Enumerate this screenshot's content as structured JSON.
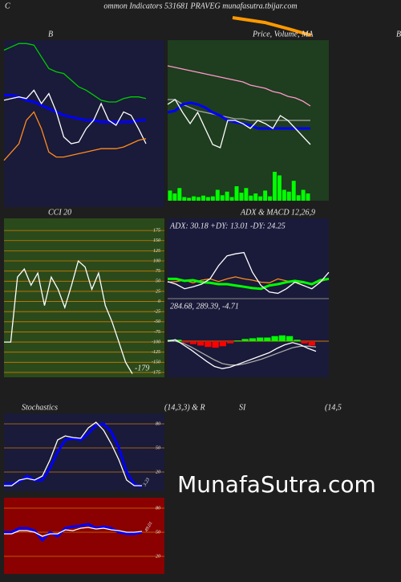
{
  "header": {
    "left": "C",
    "center": "ommon Indicators 531681 PRAVEG munafasutra.tbijar.com",
    "right": "B"
  },
  "row3_titles": [
    "(14,3,3) & R",
    "SI",
    "(14,5"
  ],
  "watermark": "MunafaSutra.com",
  "chart_data": [
    {
      "type": "line",
      "title": "B",
      "ylim": [
        0,
        100
      ],
      "series": [
        {
          "color": "#00cc00",
          "values": [
            94,
            96,
            98,
            98,
            97,
            90,
            83,
            81,
            80,
            76,
            72,
            70,
            67,
            64,
            63,
            63,
            65,
            66,
            66,
            65
          ]
        },
        {
          "color": "#0000ff",
          "values": [
            67,
            67,
            66,
            64,
            63,
            61,
            59,
            57,
            55,
            54,
            53,
            52,
            52,
            51,
            51,
            51,
            51,
            51,
            52,
            52
          ]
        },
        {
          "color": "#ffffff",
          "values": [
            64,
            65,
            66,
            65,
            70,
            62,
            68,
            57,
            42,
            38,
            39,
            47,
            52,
            62,
            52,
            49,
            57,
            55,
            47,
            38
          ]
        },
        {
          "color": "#ff8c1a",
          "values": [
            28,
            33,
            38,
            52,
            57,
            47,
            33,
            30,
            30,
            31,
            32,
            33,
            34,
            35,
            35,
            35,
            36,
            38,
            40,
            41
          ]
        }
      ]
    },
    {
      "type": "line",
      "title": "Price, Volume, MA",
      "ylim": [
        0,
        100
      ],
      "series": [
        {
          "color": "#ff99cc",
          "values": [
            84,
            83,
            82,
            81,
            80,
            79,
            78,
            77,
            76,
            75,
            74,
            72,
            71,
            70,
            68,
            67,
            65,
            64,
            62,
            59
          ]
        },
        {
          "color": "#aaaaaa",
          "values": [
            63,
            63,
            60,
            58,
            56,
            55,
            54,
            53,
            52,
            51,
            51,
            50,
            50,
            50,
            50,
            50,
            50,
            50,
            50,
            50
          ]
        },
        {
          "color": "#0000ff",
          "values": [
            55,
            56,
            60,
            61,
            60,
            58,
            55,
            53,
            50,
            49,
            48,
            47,
            45,
            45,
            45,
            45,
            45,
            45,
            45,
            45
          ]
        },
        {
          "color": "#ffffff",
          "values": [
            60,
            63,
            55,
            48,
            55,
            45,
            35,
            33,
            50,
            50,
            48,
            45,
            50,
            48,
            45,
            53,
            50,
            45,
            40,
            35
          ]
        }
      ]
    },
    {
      "type": "bar",
      "color": "#00ff00",
      "ylim": [
        0,
        100
      ],
      "values": [
        28,
        20,
        35,
        10,
        8,
        12,
        10,
        14,
        10,
        12,
        30,
        15,
        25,
        10,
        40,
        22,
        35,
        14,
        20,
        12,
        28,
        12,
        80,
        70,
        30,
        25,
        55,
        15,
        30,
        20
      ]
    },
    {
      "type": "line",
      "title": "CCI 20",
      "annotation": "-179",
      "ylim": [
        -187,
        205
      ],
      "grid": true,
      "grid_color": "#cc7a00",
      "yticks": [
        175,
        150,
        125,
        100,
        75,
        50,
        25,
        0,
        -25,
        -50,
        -75,
        -100,
        -125,
        -150,
        -175
      ],
      "series": [
        {
          "color": "#ffffff",
          "values": [
            -100,
            -100,
            60,
            80,
            40,
            70,
            -10,
            60,
            30,
            -15,
            40,
            100,
            85,
            30,
            70,
            -10,
            -50,
            -100,
            -150,
            -178
          ]
        }
      ]
    },
    {
      "type": "line",
      "title": "ADX & MACD 12,26,9",
      "annotation": "ADX: 30.18 +DY: 13.01 -DY: 24.25",
      "ylim": [
        0,
        100
      ],
      "series": [
        {
          "color": "#ff8c1a",
          "values": [
            25,
            26,
            28,
            24,
            28,
            30,
            26,
            30,
            33,
            30,
            28,
            25,
            24,
            30,
            27,
            25,
            24,
            22,
            26,
            30
          ]
        },
        {
          "color": "#00ff00",
          "values": [
            30,
            30,
            27,
            28,
            25,
            24,
            22,
            22,
            20,
            18,
            16,
            15,
            20,
            22,
            25,
            27,
            25,
            22,
            28,
            30
          ]
        },
        {
          "color": "#ffffff",
          "values": [
            26,
            22,
            15,
            18,
            22,
            30,
            50,
            65,
            68,
            70,
            40,
            20,
            10,
            8,
            15,
            25,
            20,
            15,
            25,
            40
          ]
        }
      ]
    },
    {
      "type": "macd",
      "annotation": "284.68, 289.39, -4.71",
      "ylim": [
        -50,
        50
      ],
      "hist_colors": [
        "#00ff00",
        "#ff0000"
      ],
      "histogram": [
        2,
        2,
        -2,
        -4,
        -6,
        -8,
        -9,
        -7,
        -3,
        1,
        3,
        4,
        5,
        5,
        7,
        8,
        7,
        2,
        -3,
        -6
      ],
      "series": [
        {
          "color": "#aaaaaa",
          "values": [
            0,
            0,
            -3,
            -8,
            -14,
            -20,
            -26,
            -31,
            -33,
            -33,
            -31,
            -28,
            -25,
            -21,
            -17,
            -13,
            -9,
            -7,
            -7,
            -8
          ]
        },
        {
          "color": "#ffffff",
          "values": [
            0,
            2,
            -5,
            -12,
            -20,
            -28,
            -35,
            -38,
            -36,
            -32,
            -28,
            -24,
            -20,
            -16,
            -10,
            -5,
            -2,
            -5,
            -10,
            -14
          ]
        }
      ]
    },
    {
      "type": "line",
      "title": "Stochastics",
      "annotation": "3.23",
      "ylim": [
        -4,
        93
      ],
      "grid": true,
      "grid_color": "#cc7a00",
      "yticks": [
        80,
        50,
        20
      ],
      "series": [
        {
          "color": "#0000ff",
          "values": [
            5,
            5,
            8,
            15,
            10,
            10,
            25,
            45,
            60,
            62,
            60,
            68,
            78,
            80,
            70,
            50,
            20,
            5,
            2
          ]
        },
        {
          "color": "#ffffff",
          "values": [
            3,
            3,
            10,
            12,
            10,
            15,
            35,
            60,
            65,
            63,
            62,
            75,
            82,
            72,
            55,
            35,
            10,
            3,
            3
          ]
        }
      ]
    },
    {
      "type": "line",
      "annotation": "49.01",
      "ylim": [
        -2,
        93
      ],
      "grid": true,
      "grid_color": "#cc7a00",
      "yticks": [
        80,
        50,
        20
      ],
      "series": [
        {
          "color": "#0000ff",
          "values": [
            50,
            50,
            55,
            55,
            52,
            40,
            50,
            45,
            55,
            57,
            58,
            60,
            55,
            57,
            55,
            50,
            48,
            48,
            50
          ]
        },
        {
          "color": "#ffffff",
          "values": [
            48,
            48,
            52,
            52,
            50,
            45,
            48,
            48,
            53,
            52,
            55,
            56,
            54,
            55,
            53,
            52,
            50,
            50,
            51
          ]
        }
      ]
    }
  ]
}
